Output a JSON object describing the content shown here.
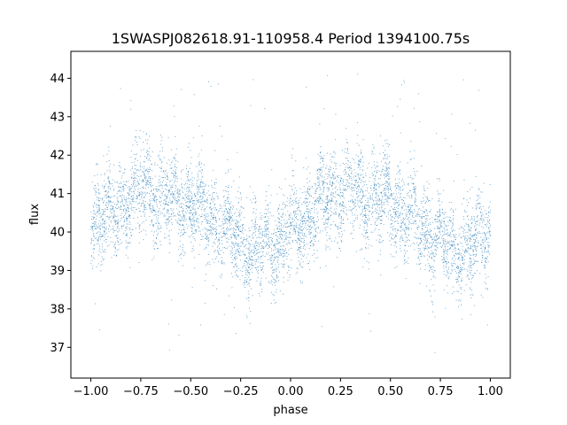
{
  "chart_data": {
    "type": "scatter",
    "title": "1SWASPJ082618.91-110958.4 Period 1394100.75s",
    "xlabel": "phase",
    "ylabel": "flux",
    "xlim": [
      -1.1,
      1.1
    ],
    "ylim": [
      36.2,
      44.7
    ],
    "xticks": [
      -1.0,
      -0.75,
      -0.5,
      -0.25,
      0.0,
      0.25,
      0.5,
      0.75,
      1.0
    ],
    "xtick_labels": [
      "−1.00",
      "−0.75",
      "−0.50",
      "−0.25",
      "0.00",
      "0.25",
      "0.50",
      "0.75",
      "1.00"
    ],
    "yticks": [
      37,
      38,
      39,
      40,
      41,
      42,
      43,
      44
    ],
    "ytick_labels": [
      "37",
      "38",
      "39",
      "40",
      "41",
      "42",
      "43",
      "44"
    ],
    "grid": false,
    "marker_color": "#1f77b4",
    "trend": {
      "phase": [
        -1.0,
        -0.9,
        -0.8,
        -0.75,
        -0.7,
        -0.6,
        -0.5,
        -0.4,
        -0.3,
        -0.25,
        -0.2,
        -0.1,
        0.0,
        0.1,
        0.2,
        0.25,
        0.3,
        0.4,
        0.5,
        0.6,
        0.7,
        0.75,
        0.8,
        0.9,
        1.0
      ],
      "flux": [
        40.2,
        40.5,
        40.9,
        41.1,
        41.0,
        40.9,
        40.7,
        40.4,
        40.0,
        39.8,
        39.6,
        39.6,
        40.0,
        40.5,
        40.9,
        41.1,
        41.0,
        40.9,
        40.7,
        40.4,
        40.0,
        39.8,
        39.6,
        39.6,
        40.2
      ]
    },
    "scatter_sigma": 0.55,
    "outlier_range": [
      36.8,
      44.3
    ]
  }
}
